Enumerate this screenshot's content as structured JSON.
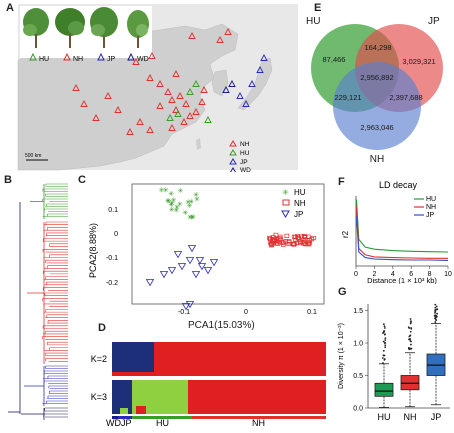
{
  "panels": {
    "a": "A",
    "b": "B",
    "c": "C",
    "d": "D",
    "e": "E",
    "f": "F",
    "g": "G"
  },
  "map": {
    "plant_labels": [
      "HU",
      "NH",
      "JP",
      "WD"
    ],
    "legend": [
      "NH",
      "HU",
      "JP",
      "WD"
    ],
    "scalebar": "500 km",
    "colors": {
      "NH": "#e03030",
      "HU": "#3a9a2a",
      "JP": "#2b2bbb",
      "WD": "#1a1a8a"
    }
  },
  "pca": {
    "xlabel": "PCA1(15.03%)",
    "ylabel": "PCA2(8.88%)",
    "xticks": [
      "-0.1",
      "0",
      "0.1"
    ],
    "yticks": [
      "0.1",
      "0",
      "-0.1",
      "-0.2"
    ],
    "legend": [
      "HU",
      "NH",
      "JP"
    ]
  },
  "structure": {
    "k_labels": [
      "K=2",
      "K=3"
    ],
    "groups": [
      "WD",
      "JP",
      "HU",
      "NH"
    ]
  },
  "venn": {
    "labels": [
      "HU",
      "JP",
      "NH"
    ],
    "values": {
      "hu_only": "87,466",
      "jp_only": "3,029,321",
      "nh_only": "2,963,046",
      "hu_jp": "164,298",
      "hu_nh": "229,121",
      "jp_nh": "2,397,688",
      "all": "2,956,892"
    }
  },
  "chart_data": [
    {
      "type": "line",
      "title": "LD decay",
      "xlabel": "Distance (1 × 10³ kb)",
      "ylabel": "r2",
      "xlim": [
        0,
        10
      ],
      "xticks": [
        "0",
        "2",
        "4",
        "6",
        "8",
        "10"
      ],
      "yticks": [],
      "series": [
        {
          "name": "HU",
          "color": "#2a9a3a",
          "x": [
            0.05,
            0.3,
            1,
            2,
            4,
            6,
            8,
            10
          ],
          "values": [
            0.95,
            0.38,
            0.27,
            0.24,
            0.22,
            0.21,
            0.205,
            0.2
          ]
        },
        {
          "name": "NH",
          "color": "#e03030",
          "x": [
            0.05,
            0.3,
            1,
            2,
            4,
            6,
            8,
            10
          ],
          "values": [
            0.85,
            0.25,
            0.16,
            0.13,
            0.12,
            0.115,
            0.11,
            0.11
          ]
        },
        {
          "name": "JP",
          "color": "#3050c0",
          "x": [
            0.05,
            0.3,
            1,
            2,
            4,
            6,
            8,
            10
          ],
          "values": [
            0.7,
            0.2,
            0.12,
            0.1,
            0.09,
            0.085,
            0.085,
            0.08
          ]
        }
      ]
    },
    {
      "type": "box",
      "ylabel": "Diversity π (1 × 10⁻²)",
      "ylim": [
        0,
        1.6
      ],
      "yticks": [
        "0.0",
        "0.5",
        "1.0",
        "1.5"
      ],
      "categories": [
        "HU",
        "NH",
        "JP"
      ],
      "colors": [
        "#1f9a55",
        "#e03030",
        "#2f6fc0"
      ],
      "boxes": [
        {
          "q1": 0.18,
          "median": 0.26,
          "q3": 0.38,
          "wlo": 0.01,
          "whi": 0.68,
          "outhi": 1.3
        },
        {
          "q1": 0.28,
          "median": 0.38,
          "q3": 0.5,
          "wlo": 0.02,
          "whi": 0.85,
          "outhi": 1.5
        },
        {
          "q1": 0.5,
          "median": 0.66,
          "q3": 0.83,
          "wlo": 0.05,
          "whi": 1.3,
          "outhi": 1.6
        }
      ]
    }
  ]
}
